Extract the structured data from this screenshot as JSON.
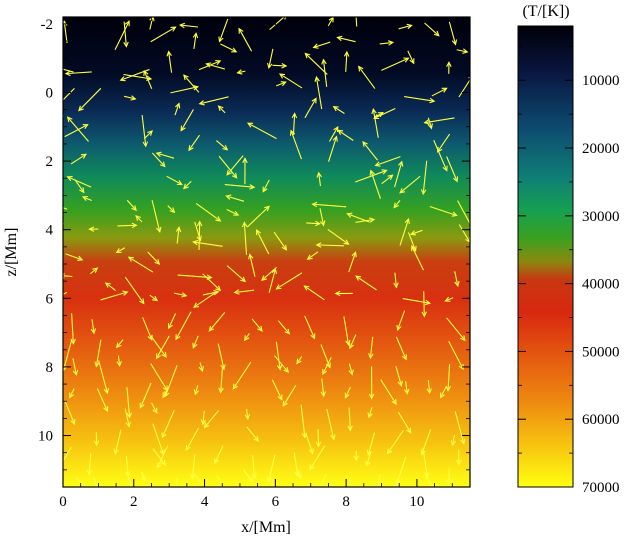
{
  "chart_data": {
    "type": "heatmap",
    "title": "",
    "xlabel": "x/[Mm]",
    "ylabel": "z/[Mm]",
    "xlim": [
      0,
      11.5
    ],
    "ylim": [
      -2.2,
      11.5
    ],
    "x_ticks": [
      "0",
      "2",
      "4",
      "6",
      "8",
      "10"
    ],
    "y_ticks": [
      "-2",
      "0",
      "2",
      "4",
      "6",
      "8",
      "10"
    ],
    "colorbar": {
      "title": "(T/[K])",
      "range": [
        2000,
        70000
      ],
      "ticks": [
        "10000",
        "20000",
        "30000",
        "40000",
        "50000",
        "60000",
        "70000"
      ],
      "colormap": [
        "#000010",
        "#0a1a4a",
        "#0d4a6a",
        "#0f7f6a",
        "#1a9a3a",
        "#7aa010",
        "#d84010",
        "#e03010",
        "#e86010",
        "#f0a010",
        "#ffff10"
      ]
    },
    "temperature_profile": {
      "z_Mm": [
        -2.2,
        0,
        1,
        2,
        3,
        4,
        4.5,
        5,
        6,
        7,
        8,
        9,
        10,
        11.5
      ],
      "T_K": [
        3000,
        6000,
        12000,
        18000,
        26000,
        32000,
        36000,
        39000,
        42000,
        48000,
        54000,
        59000,
        64000,
        70000
      ]
    },
    "overlay": {
      "type": "velocity-vectors",
      "color": "#ffff40"
    }
  }
}
